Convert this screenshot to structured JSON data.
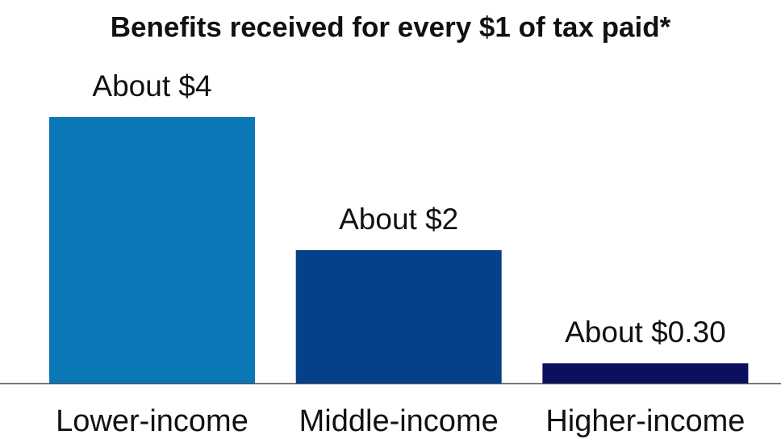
{
  "chart_data": {
    "type": "bar",
    "title": "Benefits received for every $1 of tax paid*",
    "categories": [
      "Lower-income",
      "Middle-income",
      "Higher-income"
    ],
    "values": [
      4,
      2,
      0.3
    ],
    "value_labels": [
      "About $4",
      "About $2",
      "About $0.30"
    ],
    "colors": [
      "#0a77b6",
      "#05418b",
      "#0c0f5e"
    ]
  }
}
